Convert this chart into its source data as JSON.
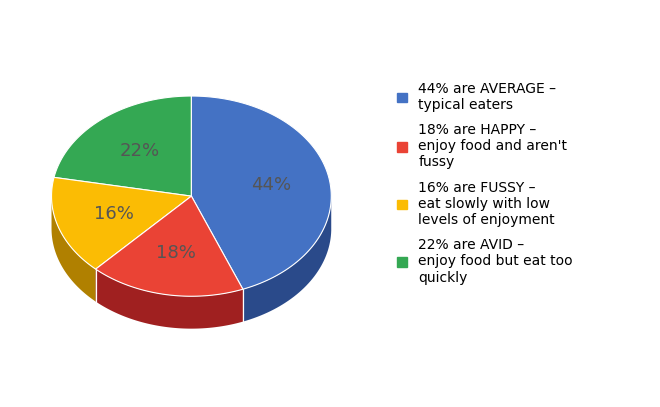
{
  "slices": [
    44,
    18,
    16,
    22
  ],
  "colors": [
    "#4472C4",
    "#EA4335",
    "#FBBC04",
    "#34A853"
  ],
  "dark_colors": [
    "#2a4a8a",
    "#a02020",
    "#b08000",
    "#1a7a30"
  ],
  "labels": [
    "44%",
    "18%",
    "16%",
    "22%"
  ],
  "legend_labels": [
    "44% are AVERAGE –\ntypical eaters",
    "18% are HAPPY –\nenjoy food and aren't\nfussy",
    "16% are FUSSY –\neat slowly with low\nlevels of enjoyment",
    "22% are AVID –\nenjoy food but eat too\nquickly"
  ],
  "background_color": "#ffffff",
  "label_fontsize": 13,
  "legend_fontsize": 10,
  "startangle": 90,
  "label_color": "#555555"
}
